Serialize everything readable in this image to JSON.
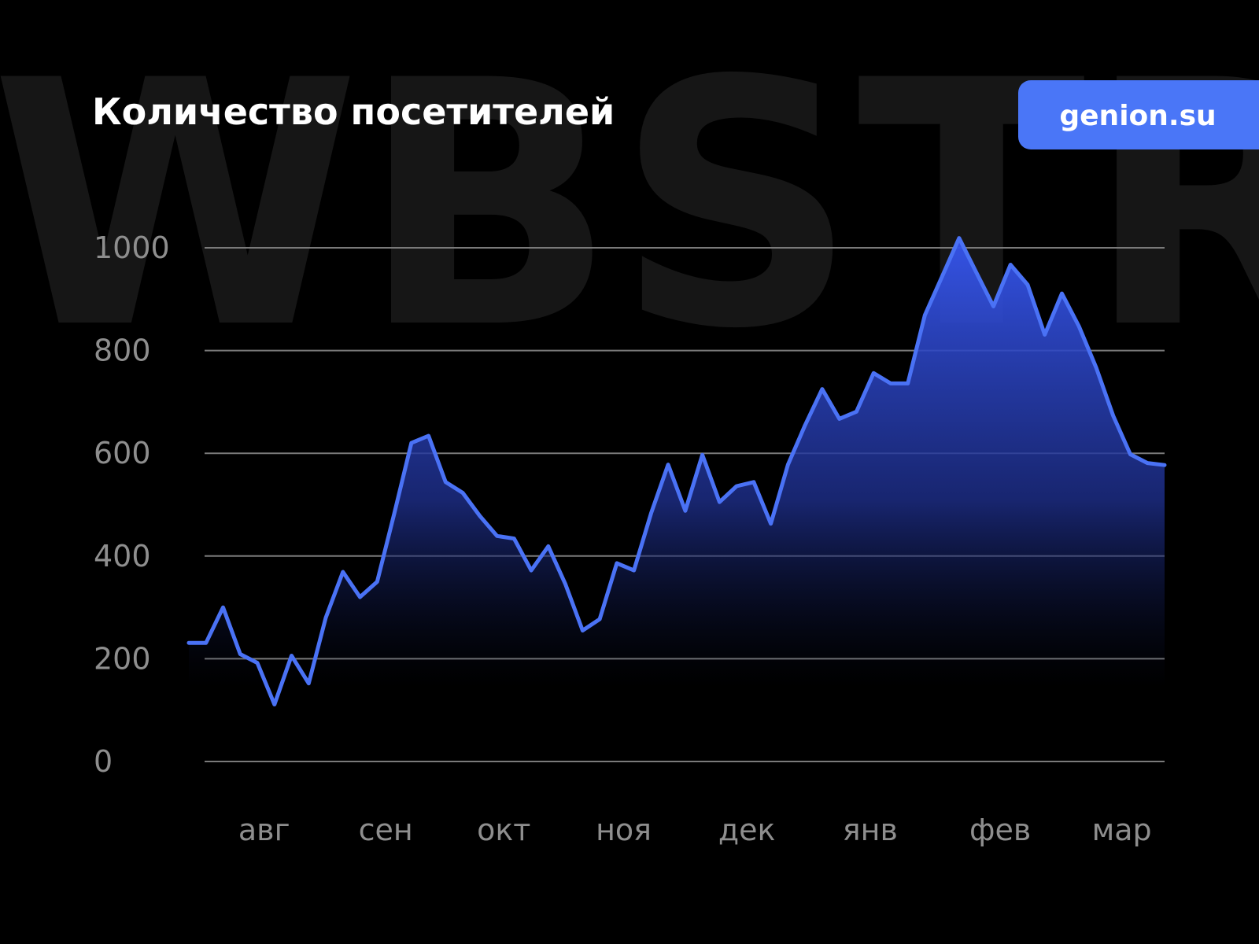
{
  "chart_data": {
    "type": "area",
    "watermark": "WBSTR",
    "title": "Количество посетителей",
    "badge": "genion.su",
    "x": [
      0,
      1,
      2,
      3,
      4,
      5,
      6,
      7,
      8,
      9,
      10,
      11,
      12,
      13,
      14,
      15,
      16,
      17,
      18,
      19,
      20,
      21,
      22,
      23,
      24,
      25,
      26,
      27,
      28,
      29,
      30,
      31,
      32,
      33,
      34,
      35,
      36,
      37,
      38,
      39,
      40,
      41,
      42,
      43,
      44,
      45,
      46,
      47,
      48,
      49,
      50,
      51,
      52,
      53,
      54,
      55,
      56,
      57
    ],
    "series": [
      {
        "color": "#4a72f5",
        "values": [
          231,
          231,
          300,
          209,
          192,
          111,
          206,
          152,
          280,
          369,
          320,
          350,
          483,
          620,
          634,
          544,
          523,
          478,
          439,
          434,
          372,
          419,
          345,
          255,
          277,
          386,
          372,
          483,
          578,
          488,
          597,
          505,
          536,
          544,
          463,
          578,
          655,
          725,
          667,
          681,
          756,
          736,
          736,
          869,
          944,
          1019,
          952,
          886,
          967,
          928,
          831,
          911,
          847,
          767,
          673,
          598,
          581,
          577
        ]
      }
    ],
    "xlim": [
      0,
      57
    ],
    "xticks": [
      {
        "value": 4.4,
        "label": "авг"
      },
      {
        "value": 11.5,
        "label": "сен"
      },
      {
        "value": 18.4,
        "label": "окт"
      },
      {
        "value": 25.4,
        "label": "ноя"
      },
      {
        "value": 32.6,
        "label": "дек"
      },
      {
        "value": 39.8,
        "label": "янв"
      },
      {
        "value": 47.4,
        "label": "фев"
      },
      {
        "value": 54.5,
        "label": "мар"
      }
    ],
    "ylim": [
      0,
      1000
    ],
    "yticks": [
      0,
      200,
      400,
      600,
      800,
      1000
    ],
    "grid": true
  }
}
